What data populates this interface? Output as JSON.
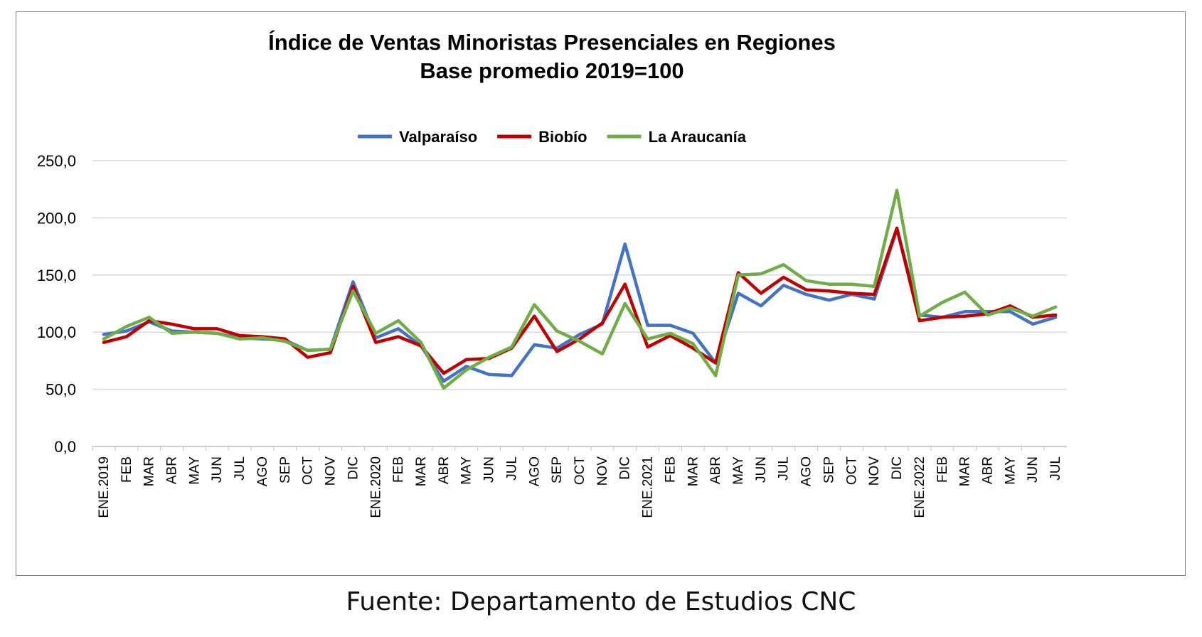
{
  "chart_data": {
    "type": "line",
    "title": "Índice de Ventas Minoristas Presenciales en Regiones",
    "subtitle": "Base promedio 2019=100",
    "xlabel": "",
    "ylabel": "",
    "ylim": [
      0,
      250
    ],
    "yticks": [
      "0,0",
      "50,0",
      "100,0",
      "150,0",
      "200,0",
      "250,0"
    ],
    "grid": true,
    "legend_position": "top-center",
    "categories": [
      "ENE.2019",
      "FEB",
      "MAR",
      "ABR",
      "MAY",
      "JUN",
      "JUL",
      "AGO",
      "SEP",
      "OCT",
      "NOV",
      "DIC",
      "ENE.2020",
      "FEB",
      "MAR",
      "ABR",
      "MAY",
      "JUN",
      "JUL",
      "AGO",
      "SEP",
      "OCT",
      "NOV",
      "DIC",
      "ENE.2021",
      "FEB",
      "MAR",
      "ABR",
      "MAY",
      "JUN",
      "JUL",
      "AGO",
      "SEP",
      "OCT",
      "NOV",
      "DIC",
      "ENE.2022",
      "FEB",
      "MAR",
      "ABR",
      "MAY",
      "JUN",
      "JUL"
    ],
    "series": [
      {
        "name": "Valparaíso",
        "color": "#4472c4",
        "values": [
          98,
          101,
          109,
          101,
          100,
          99,
          95,
          94,
          93,
          84,
          85,
          144,
          95,
          103,
          88,
          57,
          70,
          63,
          62,
          89,
          86,
          98,
          107,
          177,
          106,
          106,
          99,
          73,
          134,
          123,
          141,
          133,
          128,
          133,
          129,
          190,
          115,
          113,
          118,
          118,
          118,
          107,
          113
        ]
      },
      {
        "name": "Biobío",
        "color": "#c00000",
        "values": [
          91,
          96,
          110,
          107,
          103,
          103,
          97,
          96,
          94,
          78,
          82,
          140,
          91,
          96,
          88,
          64,
          76,
          77,
          86,
          114,
          83,
          94,
          108,
          142,
          87,
          97,
          86,
          73,
          152,
          134,
          148,
          137,
          136,
          134,
          133,
          191,
          110,
          113,
          114,
          116,
          123,
          113,
          115
        ]
      },
      {
        "name": "La Araucanía",
        "color": "#70ad47",
        "values": [
          94,
          105,
          113,
          99,
          100,
          99,
          94,
          95,
          92,
          84,
          85,
          136,
          99,
          110,
          91,
          51,
          67,
          78,
          87,
          124,
          101,
          92,
          81,
          125,
          94,
          99,
          90,
          62,
          150,
          151,
          159,
          145,
          142,
          142,
          140,
          224,
          114,
          126,
          135,
          115,
          121,
          114,
          122
        ]
      }
    ]
  },
  "source": "Fuente: Departamento de Estudios CNC"
}
